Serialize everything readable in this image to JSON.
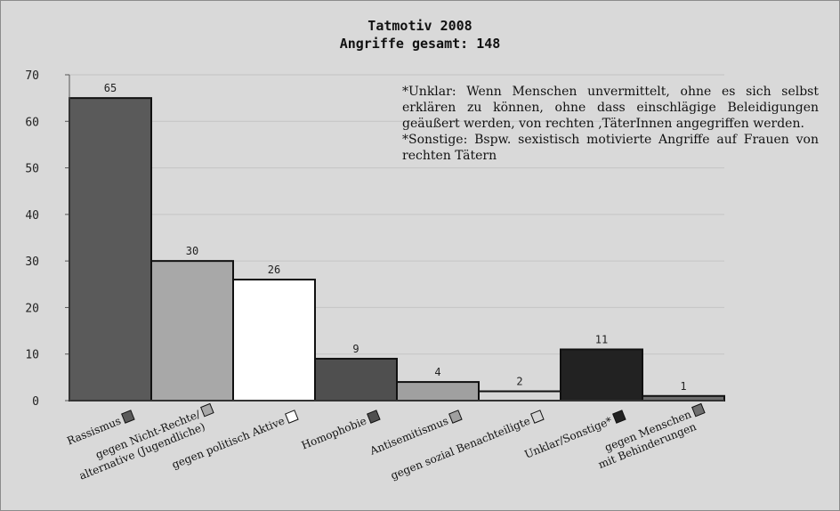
{
  "chart_data": {
    "type": "bar",
    "title": "Tatmotiv 2008",
    "subtitle": "Angriffe gesamt: 148",
    "categories": [
      "Rassismus",
      "gegen Nicht-Rechte/ alternative (Jugendliche)",
      "gegen politisch Aktive",
      "Homophobie",
      "Antisemitismus",
      "gegen sozial Benachteiligte",
      "Unklar/Sonstige*",
      "gegen Menschen mit Behinderungen"
    ],
    "category_lines": [
      [
        "Rassismus"
      ],
      [
        "gegen Nicht-Rechte/",
        "alternative (Jugendliche)"
      ],
      [
        "gegen politisch Aktive"
      ],
      [
        "Homophobie"
      ],
      [
        "Antisemitismus"
      ],
      [
        "gegen sozial Benachteiligte"
      ],
      [
        "Unklar/Sonstige*"
      ],
      [
        "gegen Menschen",
        "mit Behinderungen"
      ]
    ],
    "values": [
      65,
      30,
      26,
      9,
      4,
      2,
      11,
      1
    ],
    "colors": [
      "#5a5a5a",
      "#a8a8a8",
      "#ffffff",
      "#4f4f4f",
      "#a0a0a0",
      "#d6d6d6",
      "#222222",
      "#6e6e6e"
    ],
    "ylim": [
      0,
      70
    ],
    "yticks": [
      0,
      10,
      20,
      30,
      40,
      50,
      60,
      70
    ],
    "grid": true,
    "legend": "legend swatches under each category label",
    "xlabel": "",
    "ylabel": ""
  },
  "annotation": {
    "line1": "*Unklar: Wenn Menschen unvermittelt, ohne es sich selbst erklären zu können, ohne dass einschlägige Beleidigungen geäußert werden, von rechten ‚TäterInnen angegriffen werden.",
    "line2": "*Sonstige: Bspw. sexistisch motivierte Angriffe auf Frauen von rechten Tätern"
  }
}
